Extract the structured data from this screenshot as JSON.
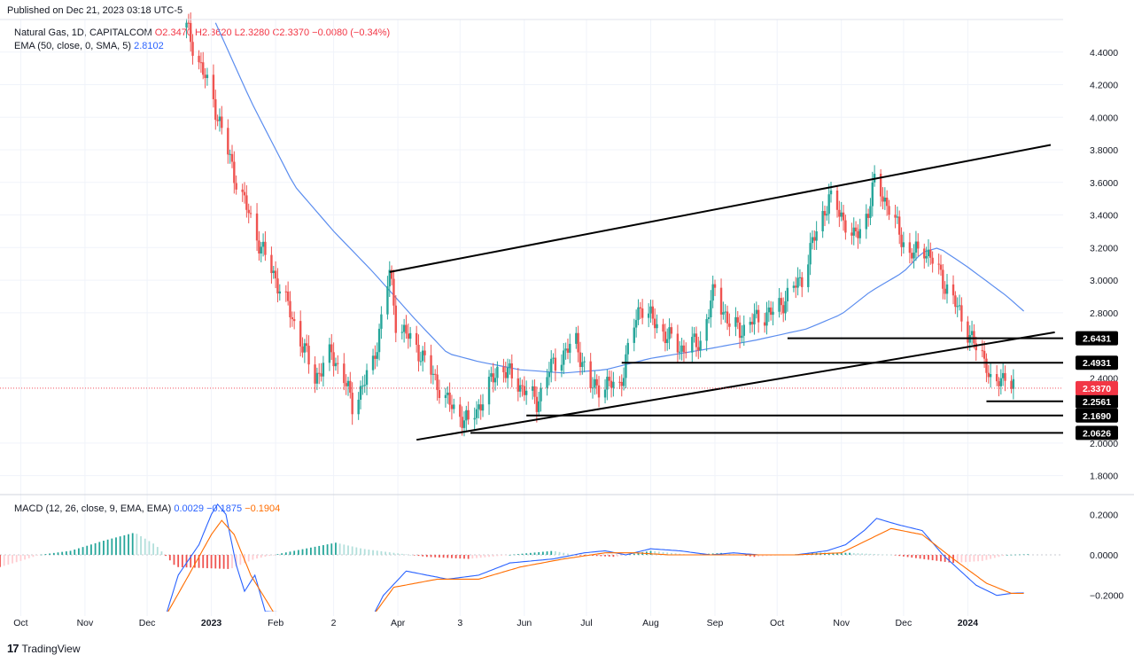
{
  "header": {
    "published": "Published on Dec 21, 2023 03:18 UTC-5",
    "symbol_line_prefix": "Natural Gas, 1D, CAPITALCOM",
    "ohlc": [
      "O2.3470",
      "H2.3620",
      "L2.3280",
      "C2.3370",
      "−0.0080 (−0.34%)"
    ],
    "ema_label": "EMA (50, close, 0, SMA, 5)",
    "ema_value": "2.8102"
  },
  "macd_legend": {
    "label": "MACD (12, 26, close, 9, EMA, EMA)",
    "hist": "0.0029",
    "macd": "−0.1875",
    "signal": "−0.1904"
  },
  "footer": {
    "brand": "TradingView"
  },
  "colors": {
    "up": "#26a69a",
    "down": "#ef5350",
    "ema": "#5b8def",
    "macd": "#2962ff",
    "signal": "#ff6d00",
    "price_tag": "#f23645"
  },
  "chart_data": [
    {
      "type": "candlestick",
      "title": "Natural Gas, 1D, CAPITALCOM",
      "ylim": [
        1.7,
        4.6
      ],
      "y_ticks": [
        "4.4000",
        "4.2000",
        "4.0000",
        "3.8000",
        "3.6000",
        "3.4000",
        "3.2000",
        "3.0000",
        "2.8000",
        "2.4000",
        "2.0000",
        "1.8000"
      ],
      "x_ticks": [
        "Oct",
        "Nov",
        "Dec",
        "2023",
        "Feb",
        "2",
        "Apr",
        "3",
        "Jun",
        "Jul",
        "Aug",
        "Sep",
        "Oct",
        "Nov",
        "Dec",
        "2024"
      ],
      "x_tick_dates": [
        "2022-10-01",
        "2022-11-01",
        "2022-12-01",
        "2023-01-01",
        "2023-02-01",
        "2023-03-01",
        "2023-04-01",
        "2023-05-01",
        "2023-06-01",
        "2023-07-01",
        "2023-08-01",
        "2023-09-01",
        "2023-10-01",
        "2023-11-01",
        "2023-12-01",
        "2024-01-01"
      ],
      "price_anchors": [
        [
          "2022-12-20",
          4.55
        ],
        [
          "2023-01-02",
          4.1
        ],
        [
          "2023-01-12",
          3.65
        ],
        [
          "2023-01-25",
          3.2
        ],
        [
          "2023-02-05",
          2.9
        ],
        [
          "2023-02-20",
          2.4
        ],
        [
          "2023-02-28",
          2.55
        ],
        [
          "2023-03-06",
          2.4
        ],
        [
          "2023-03-10",
          2.23
        ],
        [
          "2023-03-20",
          2.48
        ],
        [
          "2023-03-28",
          3.05
        ],
        [
          "2023-03-31",
          2.75
        ],
        [
          "2023-04-12",
          2.55
        ],
        [
          "2023-04-25",
          2.25
        ],
        [
          "2023-05-05",
          2.12
        ],
        [
          "2023-05-12",
          2.27
        ],
        [
          "2023-05-20",
          2.48
        ],
        [
          "2023-06-01",
          2.33
        ],
        [
          "2023-06-07",
          2.25
        ],
        [
          "2023-06-13",
          2.45
        ],
        [
          "2023-06-20",
          2.55
        ],
        [
          "2023-06-26",
          2.62
        ],
        [
          "2023-07-03",
          2.34
        ],
        [
          "2023-07-10",
          2.36
        ],
        [
          "2023-07-17",
          2.35
        ],
        [
          "2023-07-24",
          2.72
        ],
        [
          "2023-07-27",
          2.85
        ],
        [
          "2023-08-04",
          2.72
        ],
        [
          "2023-08-15",
          2.58
        ],
        [
          "2023-08-25",
          2.62
        ],
        [
          "2023-09-01",
          2.95
        ],
        [
          "2023-09-08",
          2.72
        ],
        [
          "2023-09-15",
          2.7
        ],
        [
          "2023-09-22",
          2.78
        ],
        [
          "2023-09-29",
          2.8
        ],
        [
          "2023-10-06",
          2.9
        ],
        [
          "2023-10-13",
          3.02
        ],
        [
          "2023-10-20",
          3.3
        ],
        [
          "2023-10-26",
          3.5
        ],
        [
          "2023-11-01",
          3.4
        ],
        [
          "2023-11-07",
          3.25
        ],
        [
          "2023-11-14",
          3.42
        ],
        [
          "2023-11-17",
          3.6
        ],
        [
          "2023-11-20",
          3.55
        ],
        [
          "2023-11-27",
          3.35
        ],
        [
          "2023-12-04",
          3.15
        ],
        [
          "2023-12-11",
          3.2
        ],
        [
          "2023-12-18",
          3.05
        ],
        [
          "2023-12-28",
          2.8
        ],
        [
          "2024-01-05",
          2.58
        ],
        [
          "2024-01-10",
          2.5
        ],
        [
          "2024-01-13",
          2.3
        ],
        [
          "2024-01-16",
          2.37
        ],
        [
          "2024-01-20",
          2.45
        ],
        [
          "2024-01-23",
          2.35
        ]
      ],
      "ema_anchors": [
        [
          "2023-01-03",
          4.58
        ],
        [
          "2023-01-20",
          4.1
        ],
        [
          "2023-02-10",
          3.58
        ],
        [
          "2023-03-01",
          3.3
        ],
        [
          "2023-03-20",
          3.05
        ],
        [
          "2023-04-10",
          2.75
        ],
        [
          "2023-04-25",
          2.55
        ],
        [
          "2023-05-10",
          2.5
        ],
        [
          "2023-05-30",
          2.45
        ],
        [
          "2023-06-20",
          2.43
        ],
        [
          "2023-07-10",
          2.45
        ],
        [
          "2023-08-01",
          2.52
        ],
        [
          "2023-08-25",
          2.57
        ],
        [
          "2023-09-20",
          2.63
        ],
        [
          "2023-10-15",
          2.7
        ],
        [
          "2023-11-01",
          2.79
        ],
        [
          "2023-11-15",
          2.93
        ],
        [
          "2023-12-01",
          3.05
        ],
        [
          "2023-12-10",
          3.17
        ],
        [
          "2023-12-18",
          3.2
        ],
        [
          "2024-01-01",
          3.08
        ],
        [
          "2024-01-20",
          2.9
        ],
        [
          "2024-01-28",
          2.81
        ]
      ],
      "trendlines": [
        {
          "name": "upper-channel",
          "from": [
            "2023-03-28",
            3.05
          ],
          "to": [
            "2024-02-10",
            3.83
          ]
        },
        {
          "name": "lower-channel",
          "from": [
            "2023-04-10",
            2.02
          ],
          "to": [
            "2024-02-12",
            2.68
          ]
        }
      ],
      "levels": [
        {
          "value": "2.6431",
          "from": "2023-10-06"
        },
        {
          "value": "2.4931",
          "from": "2023-07-18"
        },
        {
          "value": "2.2561",
          "from": "2024-01-10"
        },
        {
          "value": "2.1690",
          "from": "2023-06-02"
        },
        {
          "value": "2.0626",
          "from": "2023-05-06"
        }
      ],
      "last_price": "2.3370"
    },
    {
      "type": "macd",
      "title": "MACD (12, 26, close, 9, EMA, EMA)",
      "ylim": [
        -0.28,
        0.28
      ],
      "y_ticks": [
        "0.2000",
        "0.0000",
        "−0.2000"
      ],
      "hist_anchors": [
        [
          "2022-09-21",
          -0.06
        ],
        [
          "2022-10-01",
          -0.03
        ],
        [
          "2022-10-10",
          0.0
        ],
        [
          "2022-10-25",
          0.02
        ],
        [
          "2022-11-10",
          0.07
        ],
        [
          "2022-11-25",
          0.11
        ],
        [
          "2022-12-05",
          0.05
        ],
        [
          "2022-12-15",
          -0.06
        ],
        [
          "2023-01-10",
          -0.07
        ],
        [
          "2023-01-22",
          -0.02
        ],
        [
          "2023-02-05",
          0.01
        ],
        [
          "2023-02-20",
          0.04
        ],
        [
          "2023-03-02",
          0.06
        ],
        [
          "2023-03-15",
          0.03
        ],
        [
          "2023-03-30",
          0.01
        ],
        [
          "2023-04-15",
          -0.01
        ],
        [
          "2023-05-05",
          -0.02
        ],
        [
          "2023-05-25",
          0.0
        ],
        [
          "2023-06-15",
          0.02
        ],
        [
          "2023-06-25",
          0.0
        ],
        [
          "2023-07-15",
          -0.01
        ],
        [
          "2023-08-01",
          0.02
        ],
        [
          "2023-08-20",
          0.0
        ],
        [
          "2023-09-05",
          0.01
        ],
        [
          "2023-09-20",
          -0.01
        ],
        [
          "2023-10-20",
          0.01
        ],
        [
          "2023-11-05",
          0.01
        ],
        [
          "2023-11-25",
          0.0
        ],
        [
          "2023-12-10",
          -0.02
        ],
        [
          "2023-12-25",
          -0.04
        ],
        [
          "2024-01-08",
          -0.03
        ],
        [
          "2024-01-20",
          0.0
        ],
        [
          "2024-01-30",
          0.003
        ]
      ],
      "macd_anchors": [
        [
          "2022-12-10",
          -0.3
        ],
        [
          "2022-12-16",
          -0.1
        ],
        [
          "2022-12-26",
          0.05
        ],
        [
          "2023-01-01",
          0.2
        ],
        [
          "2023-01-04",
          0.25
        ],
        [
          "2023-01-08",
          0.2
        ],
        [
          "2023-01-13",
          -0.05
        ],
        [
          "2023-01-17",
          -0.18
        ],
        [
          "2023-01-22",
          -0.1
        ],
        [
          "2023-01-27",
          -0.28
        ],
        [
          "2023-03-20",
          -0.3
        ],
        [
          "2023-03-25",
          -0.2
        ],
        [
          "2023-04-05",
          -0.08
        ],
        [
          "2023-04-25",
          -0.12
        ],
        [
          "2023-05-10",
          -0.1
        ],
        [
          "2023-05-25",
          -0.04
        ],
        [
          "2023-06-15",
          -0.02
        ],
        [
          "2023-06-30",
          0.01
        ],
        [
          "2023-07-10",
          0.02
        ],
        [
          "2023-07-20",
          0.0
        ],
        [
          "2023-08-01",
          0.03
        ],
        [
          "2023-08-15",
          0.02
        ],
        [
          "2023-08-30",
          0.0
        ],
        [
          "2023-09-10",
          0.01
        ],
        [
          "2023-09-22",
          0.0
        ],
        [
          "2023-10-10",
          0.0
        ],
        [
          "2023-10-25",
          0.02
        ],
        [
          "2023-11-03",
          0.05
        ],
        [
          "2023-11-12",
          0.12
        ],
        [
          "2023-11-18",
          0.18
        ],
        [
          "2023-11-28",
          0.15
        ],
        [
          "2023-12-10",
          0.12
        ],
        [
          "2023-12-20",
          0.0
        ],
        [
          "2024-01-05",
          -0.15
        ],
        [
          "2024-01-15",
          -0.2
        ],
        [
          "2024-01-22",
          -0.19
        ],
        [
          "2024-01-28",
          -0.1875
        ]
      ],
      "signal_anchors": [
        [
          "2022-12-10",
          -0.3
        ],
        [
          "2022-12-20",
          -0.12
        ],
        [
          "2023-01-01",
          0.1
        ],
        [
          "2023-01-06",
          0.17
        ],
        [
          "2023-01-12",
          0.1
        ],
        [
          "2023-01-20",
          -0.1
        ],
        [
          "2023-02-01",
          -0.3
        ],
        [
          "2023-03-20",
          -0.3
        ],
        [
          "2023-03-30",
          -0.16
        ],
        [
          "2023-04-20",
          -0.12
        ],
        [
          "2023-05-10",
          -0.12
        ],
        [
          "2023-05-30",
          -0.06
        ],
        [
          "2023-06-20",
          -0.02
        ],
        [
          "2023-07-10",
          0.01
        ],
        [
          "2023-07-25",
          0.01
        ],
        [
          "2023-08-10",
          0.0
        ],
        [
          "2023-09-10",
          0.0
        ],
        [
          "2023-10-10",
          0.0
        ],
        [
          "2023-11-01",
          0.01
        ],
        [
          "2023-11-15",
          0.08
        ],
        [
          "2023-11-25",
          0.13
        ],
        [
          "2023-12-10",
          0.1
        ],
        [
          "2023-12-25",
          -0.02
        ],
        [
          "2024-01-10",
          -0.14
        ],
        [
          "2024-01-22",
          -0.19
        ],
        [
          "2024-01-28",
          -0.1904
        ]
      ]
    }
  ]
}
